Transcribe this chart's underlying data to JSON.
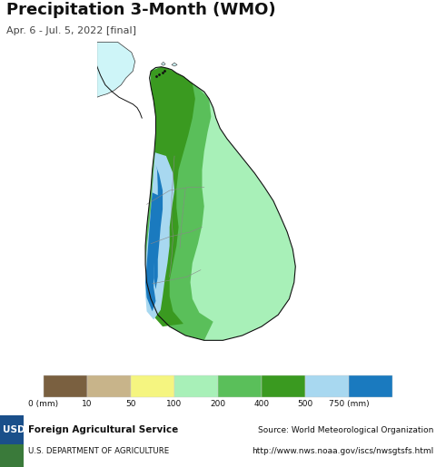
{
  "title": "Precipitation 3-Month (WMO)",
  "subtitle": "Apr. 6 - Jul. 5, 2022 [final]",
  "ocean_color": "#cef5f8",
  "colorbar_colors": [
    "#7a6040",
    "#c8b48a",
    "#f5f580",
    "#a8f0b8",
    "#5abf5a",
    "#3a9a20",
    "#a8d8f0",
    "#1a7abf"
  ],
  "colorbar_labels": [
    "0 (mm)",
    "10",
    "50",
    "100",
    "200",
    "400",
    "500",
    "750 (mm)"
  ],
  "usda_text": "Foreign Agricultural Service",
  "usda_sub": "U.S. DEPARTMENT OF AGRICULTURE",
  "source_text": "Source: World Meteorological Organization",
  "source_url": "http://www.nws.noaa.gov/iscs/nwsgtsfs.html",
  "title_fontsize": 13,
  "subtitle_fontsize": 8,
  "footer_bg": "#e0e0e0"
}
